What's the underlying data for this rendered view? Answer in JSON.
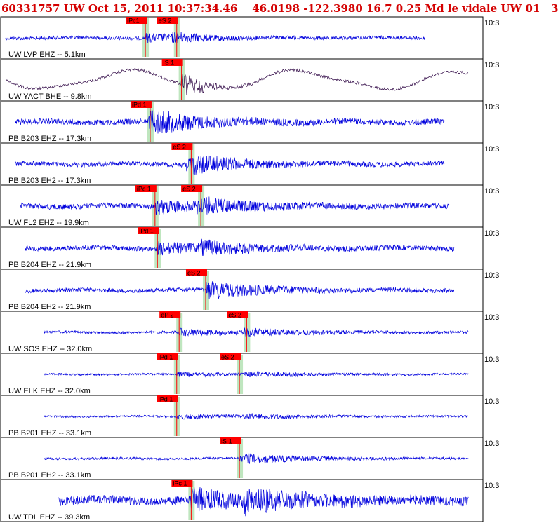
{
  "header": {
    "text": "60331757 UW Oct 15, 2011 10:37:34.46    46.0198 -122.3980 16.7 0.25 Md le vidale UW 01   3"
  },
  "chart_data": {
    "type": "seismogram",
    "time_label": "10:3",
    "trace_color": "#0000dd",
    "alt_trace_color": "#2a0040",
    "pick_color": "#ff0000",
    "window_color": "#bfe6bf",
    "traces": [
      {
        "label": "UW LVP EHZ -- 5.1km",
        "color": "blue",
        "amplitude": 0.18,
        "start": 0.01,
        "end": 0.88,
        "picks": [
          {
            "name": "iPc1",
            "pos": 0.3
          },
          {
            "name": "eS 2",
            "pos": 0.365
          }
        ],
        "event_pos": 0.37,
        "decay": 0.35
      },
      {
        "label": "UW YACT BHE -- 9.8km",
        "color": "purple",
        "amplitude": 0.45,
        "start": 0.01,
        "end": 0.97,
        "picks": [
          {
            "name": "iS 1",
            "pos": 0.375
          }
        ],
        "event_pos": 0.38,
        "decay": 0.25
      },
      {
        "label": "PB B203 EHZ -- 17.3km",
        "color": "blue",
        "amplitude": 0.3,
        "start": 0.03,
        "end": 0.92,
        "picks": [
          {
            "name": "iPd 1",
            "pos": 0.31
          }
        ],
        "event_pos": 0.32,
        "decay": 0.5
      },
      {
        "label": "PB B203 EH2 -- 17.3km",
        "color": "blue",
        "amplitude": 0.25,
        "start": 0.03,
        "end": 0.92,
        "picks": [
          {
            "name": "eS 2",
            "pos": 0.395
          }
        ],
        "event_pos": 0.4,
        "decay": 0.5
      },
      {
        "label": "UW FL2 EHZ -- 19.9km",
        "color": "blue",
        "amplitude": 0.28,
        "start": 0.04,
        "end": 0.93,
        "picks": [
          {
            "name": "iPc 1",
            "pos": 0.32
          },
          {
            "name": "eS 2",
            "pos": 0.415
          }
        ],
        "event_pos": 0.42,
        "decay": 0.55
      },
      {
        "label": "PB B204 EHZ -- 21.9km",
        "color": "blue",
        "amplitude": 0.25,
        "start": 0.05,
        "end": 0.94,
        "picks": [
          {
            "name": "iPd 1",
            "pos": 0.325
          }
        ],
        "event_pos": 0.43,
        "decay": 0.55
      },
      {
        "label": "PB B204 EH2 -- 21.9km",
        "color": "blue",
        "amplitude": 0.22,
        "start": 0.05,
        "end": 0.94,
        "picks": [
          {
            "name": "eS 2",
            "pos": 0.425
          }
        ],
        "event_pos": 0.44,
        "decay": 0.55
      },
      {
        "label": "UW SOS EHZ -- 32.0km",
        "color": "blue",
        "amplitude": 0.14,
        "start": 0.09,
        "end": 0.97,
        "picks": [
          {
            "name": "eP 2",
            "pos": 0.37
          },
          {
            "name": "eS 2",
            "pos": 0.51
          }
        ],
        "event_pos": 0.52,
        "decay": 0.6
      },
      {
        "label": "UW ELK EHZ -- 32.0km",
        "color": "blue",
        "amplitude": 0.1,
        "start": 0.09,
        "end": 0.97,
        "picks": [
          {
            "name": "iPd 1",
            "pos": 0.365
          },
          {
            "name": "eS 2",
            "pos": 0.495
          }
        ],
        "event_pos": 0.52,
        "decay": 0.6
      },
      {
        "label": "PB B201 EHZ -- 33.1km",
        "color": "blue",
        "amplitude": 0.1,
        "start": 0.09,
        "end": 0.97,
        "picks": [
          {
            "name": "iPd 1",
            "pos": 0.365
          }
        ],
        "event_pos": 0.52,
        "decay": 0.6
      },
      {
        "label": "PB B201 EH2 -- 33.1km",
        "color": "blue",
        "amplitude": 0.12,
        "start": 0.09,
        "end": 0.97,
        "picks": [
          {
            "name": "iS 1",
            "pos": 0.495
          }
        ],
        "event_pos": 0.52,
        "decay": 0.6
      },
      {
        "label": "UW TDL EHZ -- 39.3km",
        "color": "blue",
        "amplitude": 0.45,
        "start": 0.12,
        "end": 0.97,
        "picks": [
          {
            "name": "iPc 1",
            "pos": 0.395
          }
        ],
        "event_pos": 0.52,
        "decay": 0.6
      }
    ]
  }
}
